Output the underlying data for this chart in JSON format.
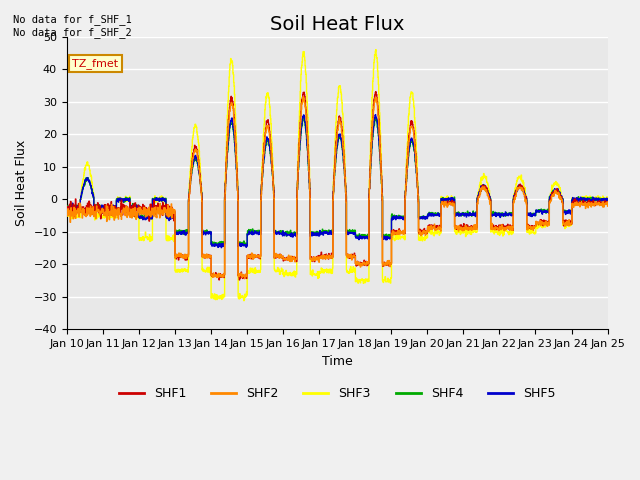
{
  "title": "Soil Heat Flux",
  "ylabel": "Soil Heat Flux",
  "xlabel": "Time",
  "ylim": [
    -40,
    50
  ],
  "yticks": [
    -40,
    -30,
    -20,
    -10,
    0,
    10,
    20,
    30,
    40,
    50
  ],
  "xtick_labels": [
    "Jan 10",
    "Jan 11",
    "Jan 12",
    "Jan 13",
    "Jan 14",
    "Jan 15",
    "Jan 16",
    "Jan 17",
    "Jan 18",
    "Jan 19",
    "Jan 20",
    "Jan 21",
    "Jan 22",
    "Jan 23",
    "Jan 24",
    "Jan 25"
  ],
  "colors": {
    "SHF1": "#cc0000",
    "SHF2": "#ff8800",
    "SHF3": "#ffff00",
    "SHF4": "#00aa00",
    "SHF5": "#0000cc"
  },
  "legend_labels": [
    "SHF1",
    "SHF2",
    "SHF3",
    "SHF4",
    "SHF5"
  ],
  "annotation_text": "No data for f_SHF_1\nNo data for f_SHF_2",
  "box_label": "TZ_fmet",
  "title_fontsize": 14,
  "label_fontsize": 9,
  "tick_fontsize": 8
}
